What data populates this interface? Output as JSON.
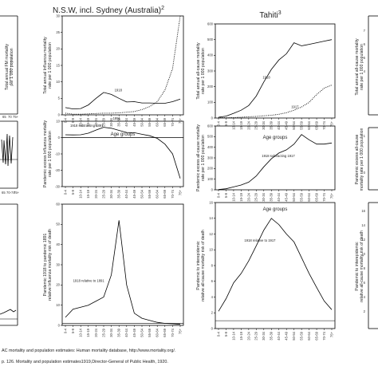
{
  "titles": {
    "nsw": "N.S.W, incl. Sydney (Australia)",
    "nsw_sup": "2",
    "tahiti": "Tahiti",
    "tahiti_sup": "3"
  },
  "age_groups": [
    "0-4",
    "5-9",
    "10-14",
    "15-19",
    "20-24",
    "25-29",
    "30-34",
    "35-39",
    "40-44",
    "45-49",
    "50-54",
    "55-59",
    "60-64",
    "65-69",
    "70-74",
    "75+"
  ],
  "left_partial": {
    "ylabels": [
      "Total annual FM mortality",
      "per 1 000 population"
    ],
    "xticks": [
      "65",
      "70",
      "75+",
      "65",
      "70-74",
      "75+"
    ]
  },
  "right_partial": {
    "yticks_top": [
      "7",
      "6",
      "5",
      "4"
    ],
    "yticks_mid": [
      "1",
      "0"
    ],
    "ylabels_top": [
      "Total annual all-cause mortality",
      "rate per 1 000 population"
    ],
    "ylabels_mid": [
      "Pandemic excess all-cause",
      "mortality rate per 1 000 population"
    ],
    "ylabels_bot": [
      "Pandemic to interepidemic",
      "relative all-cause mortality risk of death"
    ],
    "yticks_bot": [
      "16",
      "14",
      "12",
      "10",
      "8",
      "6",
      "4",
      "2"
    ]
  },
  "chart_data": [
    {
      "id": "nsw-rate",
      "type": "line",
      "ylabel": [
        "Total annual Influenza mortality",
        "rate per 1 000 population"
      ],
      "xlabel": "Age groups",
      "ylim": [
        0,
        30
      ],
      "yticks": [
        0,
        5,
        10,
        15,
        20,
        25,
        30
      ],
      "series": [
        {
          "name": "1918",
          "style": "solid",
          "values": [
            2.2,
            1.8,
            1.9,
            3.0,
            5.0,
            6.8,
            6.2,
            5.0,
            3.9,
            4.0,
            3.6,
            3.6,
            3.5,
            3.5,
            4.0,
            4.8
          ]
        },
        {
          "name": "1891",
          "style": "dotted",
          "values": [
            0.5,
            0.2,
            0.2,
            0.3,
            0.4,
            0.5,
            0.5,
            0.6,
            0.8,
            1.0,
            1.6,
            2.5,
            4.0,
            7.5,
            14.0,
            30.0
          ]
        }
      ],
      "annotations": [
        "1918",
        "1891"
      ]
    },
    {
      "id": "tahiti-rate",
      "type": "line",
      "ylabel": [
        "Total annual all-cause mortality",
        "rate per 1 000 population"
      ],
      "xlabel": "Age groups",
      "ylim": [
        0,
        600
      ],
      "yticks": [
        0,
        100,
        200,
        300,
        400,
        500,
        600
      ],
      "series": [
        {
          "name": "1918",
          "style": "solid",
          "values": [
            5,
            12,
            30,
            50,
            80,
            140,
            230,
            310,
            370,
            410,
            480,
            460,
            470,
            480,
            490,
            500
          ]
        },
        {
          "name": "1917",
          "style": "dotted",
          "values": [
            3,
            2,
            3,
            5,
            8,
            10,
            14,
            18,
            24,
            34,
            50,
            70,
            100,
            150,
            190,
            210
          ]
        }
      ],
      "annotations": [
        "1918",
        "1917"
      ]
    },
    {
      "id": "nsw-excess",
      "type": "line",
      "ylabel": [
        "Pandemic excess Influenza mortality",
        "rate per 1 000 population"
      ],
      "xlabel": "Age groups",
      "ylim": [
        -30,
        10
      ],
      "yticks": [
        -30,
        -20,
        -10,
        0,
        10
      ],
      "series": [
        {
          "name": "1918 subtracting 1891",
          "style": "solid",
          "values": [
            1.7,
            1.6,
            1.7,
            2.7,
            4.6,
            6.3,
            5.7,
            4.4,
            3.1,
            3.0,
            2.0,
            1.1,
            -0.5,
            -4.0,
            -10.0,
            -25.0
          ]
        }
      ],
      "annotations": [
        "1918 subtracting 1891"
      ]
    },
    {
      "id": "tahiti-excess",
      "type": "line",
      "ylabel": [
        "Pandemic excess all-cause mortality",
        "rate per 1 000 population"
      ],
      "xlabel": "Age groups",
      "ylim": [
        0,
        600
      ],
      "yticks": [
        0,
        100,
        200,
        300,
        400,
        500,
        600
      ],
      "series": [
        {
          "name": "1918 subtracting 1917",
          "style": "solid",
          "values": [
            2,
            10,
            27,
            45,
            72,
            130,
            216,
            292,
            346,
            376,
            430,
            520,
            470,
            430,
            430,
            440
          ]
        }
      ],
      "annotations": [
        "1918 subtracting 1917"
      ]
    },
    {
      "id": "nsw-relative",
      "type": "line",
      "ylabel": [
        "Pandemic 1918 to pandemic 1891",
        "relative Influenza mortality risk of death"
      ],
      "xlabel": "",
      "ylim": [
        0,
        60
      ],
      "yticks": [
        0,
        10,
        20,
        30,
        40,
        50,
        60
      ],
      "series": [
        {
          "name": "1918 relative to 1891",
          "style": "solid",
          "values": [
            4,
            8,
            9,
            10,
            12,
            14,
            25,
            52,
            20,
            6,
            3.5,
            2.5,
            1.5,
            1,
            0.8,
            0.5
          ]
        }
      ],
      "annotations": [
        "1918 relative to 1891"
      ]
    },
    {
      "id": "tahiti-relative",
      "type": "line",
      "ylabel": [
        "Pandemic to interepidemic",
        "relative all-cause mortality risk of death"
      ],
      "xlabel": "",
      "ylim": [
        0,
        16
      ],
      "yticks": [
        0,
        2,
        4,
        6,
        8,
        10,
        12,
        14,
        16
      ],
      "series": [
        {
          "name": "1918 relative to 1917",
          "style": "solid",
          "values": [
            2.2,
            3.8,
            5.8,
            7.0,
            8.6,
            10.5,
            12.5,
            14.0,
            13.2,
            12.0,
            11.0,
            9.0,
            7.0,
            5.2,
            3.5,
            2.4
          ]
        }
      ],
      "annotations": [
        "1918 relative to 1917"
      ]
    }
  ],
  "sources": {
    "line1": "AC mortality and population estimates: Human mortality database, http://www.mortality.org/.",
    "line2": "p. 126. Mortality and population estimates1919,Director-General of Public Health, 1920."
  }
}
